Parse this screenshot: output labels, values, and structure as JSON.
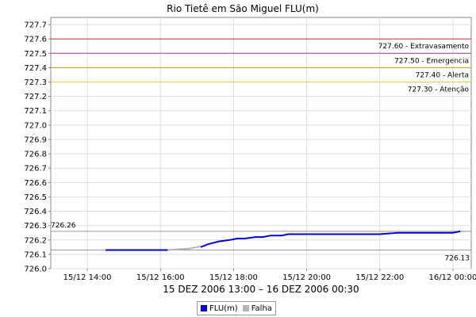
{
  "chart_data": {
    "type": "line",
    "title": "Rio Tietê em São Miguel FLU(m)",
    "xlabel": "15 DEZ 2006 13:00 – 16 DEZ 2006 00:30",
    "ylabel": "",
    "x_range": [
      "15/12 13:00",
      "16/12 00:30"
    ],
    "xlim_hours": [
      13.0,
      24.5
    ],
    "ylim": [
      726.0,
      727.75
    ],
    "y_ticks": [
      "726.0",
      "726.1",
      "726.2",
      "726.3",
      "726.4",
      "726.5",
      "726.6",
      "726.7",
      "726.8",
      "726.9",
      "727.0",
      "727.1",
      "727.2",
      "727.3",
      "727.4",
      "727.5",
      "727.6",
      "727.7"
    ],
    "x_ticks": [
      {
        "label": "15/12 14:00",
        "hour": 14
      },
      {
        "label": "15/12 16:00",
        "hour": 16
      },
      {
        "label": "15/12 18:00",
        "hour": 18
      },
      {
        "label": "15/12 20:00",
        "hour": 20
      },
      {
        "label": "15/12 22:00",
        "hour": 22
      },
      {
        "label": "16/12 00:00",
        "hour": 24
      }
    ],
    "grid": true,
    "legend_position": "bottom",
    "thresholds": [
      {
        "value": 727.6,
        "label": "727.60 - Extravasamento",
        "color": "#c83232"
      },
      {
        "value": 727.5,
        "label": "727.50 - Emergencia",
        "color": "#b43c96"
      },
      {
        "value": 727.4,
        "label": "727.40 - Alerta",
        "color": "#c8a000"
      },
      {
        "value": 727.3,
        "label": "727.30 - Atenção",
        "color": "#e6d23c"
      }
    ],
    "reference_lines": [
      {
        "value": 726.26,
        "label": "726.26",
        "position": "left"
      },
      {
        "value": 726.13,
        "label": "726.13",
        "position": "right"
      }
    ],
    "series": [
      {
        "name": "FLU(m)",
        "color": "#0000dd",
        "x_hours": [
          14.5,
          15.0,
          15.5,
          16.0,
          16.1,
          16.2
        ],
        "y": [
          726.13,
          726.13,
          726.13,
          726.13,
          726.13,
          726.13
        ]
      },
      {
        "name": "Falha",
        "color": "#b4b4b4",
        "x_hours": [
          16.2,
          16.5,
          16.8,
          17.0,
          17.1
        ],
        "y": [
          726.13,
          726.135,
          726.14,
          726.15,
          726.155
        ]
      },
      {
        "name": "FLU(m)",
        "color": "#0000dd",
        "x_hours": [
          17.1,
          17.3,
          17.6,
          17.9,
          18.1,
          18.3,
          18.6,
          18.8,
          19.0,
          19.3,
          19.5,
          20.0,
          21.0,
          22.0,
          22.5,
          23.0,
          23.5,
          24.0,
          24.2
        ],
        "y": [
          726.15,
          726.17,
          726.19,
          726.2,
          726.21,
          726.21,
          726.22,
          726.22,
          726.23,
          726.23,
          726.24,
          726.24,
          726.24,
          726.24,
          726.25,
          726.25,
          726.25,
          726.25,
          726.26
        ]
      },
      {
        "name": "Falha",
        "color": "#b4b4b4",
        "x_hours": [
          24.2,
          24.3
        ],
        "y": [
          726.26,
          726.26
        ]
      }
    ]
  },
  "legend": {
    "items": [
      {
        "label": "FLU(m)",
        "color": "#0000dd"
      },
      {
        "label": "Falha",
        "color": "#b4b4b4"
      }
    ]
  }
}
